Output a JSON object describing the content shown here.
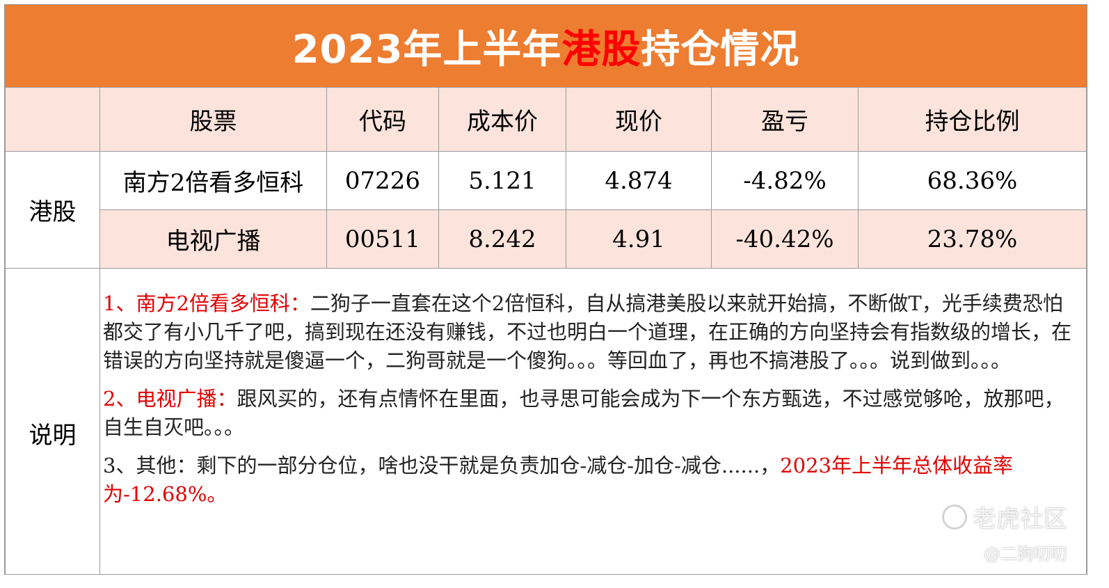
{
  "title": {
    "part1": "2023年上半年",
    "highlight": "港股",
    "part2": "持仓情况"
  },
  "columns": [
    "股票",
    "代码",
    "成本价",
    "现价",
    "盈亏",
    "持仓比例"
  ],
  "group_label": "港股",
  "rows": [
    {
      "stock": "南方2倍看多恒科",
      "code": "07226",
      "cost": "5.121",
      "price": "4.874",
      "pnl": "-4.82%",
      "weight": "68.36%"
    },
    {
      "stock": "电视广播",
      "code": "00511",
      "cost": "8.242",
      "price": "4.91",
      "pnl": "-40.42%",
      "weight": "23.78%"
    }
  ],
  "notes_label": "说明",
  "notes": [
    {
      "prefix": "1、南方2倍看多恒科：",
      "text": "二狗子一直套在这个2倍恒科，自从搞港美股以来就开始搞，不断做T，光手续费恐怕都交了有小几千了吧，搞到现在还没有赚钱，不过也明白一个道理，在正确的方向坚持会有指数级的增长，在错误的方向坚持就是傻逼一个，二狗哥就是一个傻狗。。。等回血了，再也不搞港股了。。。说到做到。。。"
    },
    {
      "prefix": "2、电视广播：",
      "text": "跟风买的，还有点情怀在里面，也寻思可能会成为下一个东方甄选，不过感觉够呛，放那吧，自生自灭吧。。。"
    },
    {
      "text": "3、其他：剩下的一部分仓位，啥也没干就是负责加仓-减仓-加仓-减仓......，",
      "highlight": "2023年上半年总体收益率为-12.68%。"
    }
  ],
  "watermark": {
    "brand": "老虎社区",
    "author": "@二狗叨叨"
  },
  "colors": {
    "header_bg": "#ED7D31",
    "row_tint": "#FCE4DC",
    "highlight": "#ff0000"
  }
}
